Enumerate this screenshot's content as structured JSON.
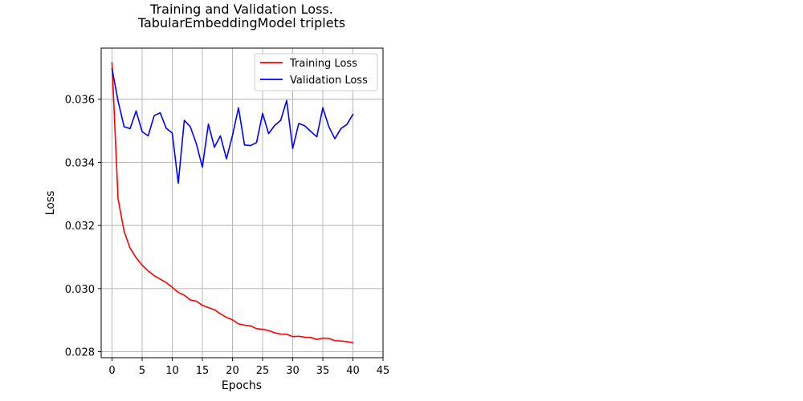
{
  "chart_data": {
    "type": "line",
    "title": [
      "Training and Validation Loss.",
      "TabularEmbeddingModel triplets"
    ],
    "xlabel": "Epochs",
    "ylabel": "Loss",
    "xlim": [
      -1.8,
      45
    ],
    "ylim": [
      0.02781,
      0.03762
    ],
    "xticks": [
      0,
      5,
      10,
      15,
      20,
      25,
      30,
      35,
      40,
      45
    ],
    "yticks": [
      0.028,
      0.03,
      0.032,
      0.034,
      0.036
    ],
    "ytick_labels": [
      "0.028",
      "0.030",
      "0.032",
      "0.034",
      "0.036"
    ],
    "grid": true,
    "legend_position": "top-right",
    "x": [
      0,
      1,
      2,
      3,
      4,
      5,
      6,
      7,
      8,
      9,
      10,
      11,
      12,
      13,
      14,
      15,
      16,
      17,
      18,
      19,
      20,
      21,
      22,
      23,
      24,
      25,
      26,
      27,
      28,
      29,
      30,
      31,
      32,
      33,
      34,
      35,
      36,
      37,
      38,
      39,
      40
    ],
    "series": [
      {
        "name": "Training Loss",
        "color": "#ff0000",
        "values": [
          0.03715,
          0.03285,
          0.03182,
          0.03128,
          0.03098,
          0.03074,
          0.03056,
          0.03041,
          0.0303,
          0.03019,
          0.03004,
          0.02988,
          0.02979,
          0.02964,
          0.0296,
          0.02947,
          0.0294,
          0.02933,
          0.0292,
          0.02909,
          0.02901,
          0.02888,
          0.02884,
          0.02882,
          0.02873,
          0.02871,
          0.02867,
          0.0286,
          0.02856,
          0.02855,
          0.02848,
          0.02849,
          0.02846,
          0.02845,
          0.02839,
          0.02843,
          0.02842,
          0.02835,
          0.02834,
          0.02832,
          0.02828
        ]
      },
      {
        "name": "Validation Loss",
        "color": "#0000ff",
        "values": [
          0.03697,
          0.03595,
          0.03513,
          0.03507,
          0.03563,
          0.03497,
          0.03484,
          0.03548,
          0.03557,
          0.03508,
          0.03493,
          0.03334,
          0.03533,
          0.03513,
          0.03459,
          0.03385,
          0.03521,
          0.03448,
          0.03484,
          0.03411,
          0.03485,
          0.03573,
          0.03455,
          0.03453,
          0.03463,
          0.03555,
          0.03491,
          0.03517,
          0.03533,
          0.03596,
          0.03444,
          0.03523,
          0.03516,
          0.03498,
          0.03481,
          0.03573,
          0.03513,
          0.03475,
          0.03507,
          0.0352,
          0.03552
        ]
      }
    ]
  }
}
